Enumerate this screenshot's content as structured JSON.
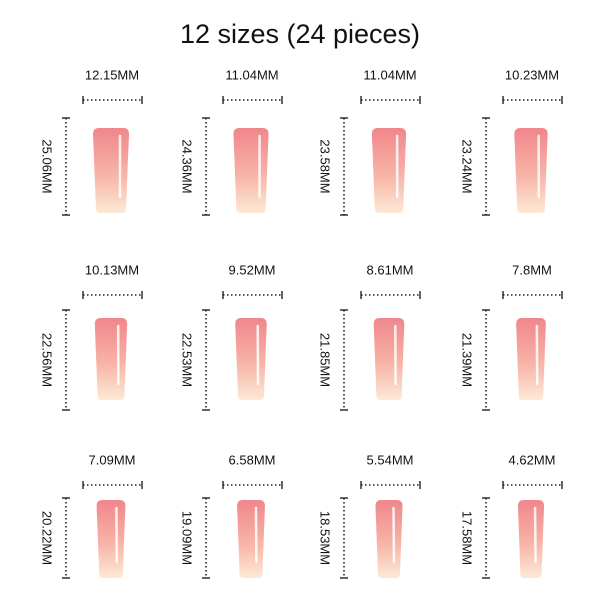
{
  "title": "12 sizes (24 pieces)",
  "items": [
    {
      "width": "12.15MM",
      "height": "25.06MM"
    },
    {
      "width": "11.04MM",
      "height": "24.36MM"
    },
    {
      "width": "11.04MM",
      "height": "23.58MM"
    },
    {
      "width": "10.23MM",
      "height": "23.24MM"
    },
    {
      "width": "10.13MM",
      "height": "22.56MM"
    },
    {
      "width": "9.52MM",
      "height": "22.53MM"
    },
    {
      "width": "8.61MM",
      "height": "21.85MM"
    },
    {
      "width": "7.8MM",
      "height": "21.39MM"
    },
    {
      "width": "7.09MM",
      "height": "20.22MM"
    },
    {
      "width": "6.58MM",
      "height": "19.09MM"
    },
    {
      "width": "5.54MM",
      "height": "18.53MM"
    },
    {
      "width": "4.62MM",
      "height": "17.58MM"
    }
  ]
}
